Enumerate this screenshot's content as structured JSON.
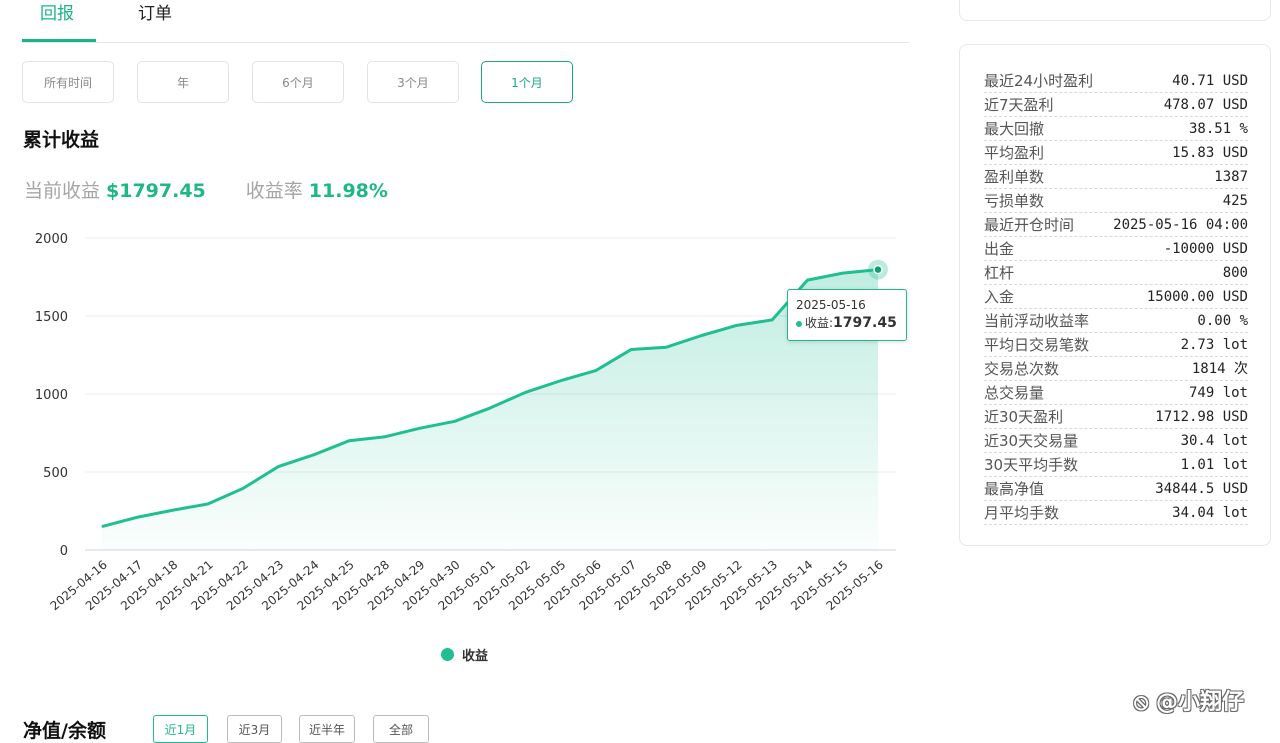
{
  "tabs": [
    {
      "label": "回报"
    },
    {
      "label": "订单"
    }
  ],
  "filters": [
    {
      "label": "所有时间"
    },
    {
      "label": "年"
    },
    {
      "label": "6个月"
    },
    {
      "label": "3个月"
    },
    {
      "label": "1个月"
    }
  ],
  "active_filter": "1个月",
  "section_title": "累计收益",
  "summary": {
    "current_label": "当前收益",
    "current_value": "$1797.45",
    "rate_label": "收益率",
    "rate_value": "11.98%"
  },
  "accent_color": "#1fb785",
  "chart_data": {
    "type": "area",
    "title": "",
    "xlabel": "",
    "ylabel": "",
    "ylim": [
      0,
      2000
    ],
    "yticks": [
      0,
      500,
      1000,
      1500,
      2000
    ],
    "grid": true,
    "legend_position": "bottom",
    "x": [
      "2025-04-16",
      "2025-04-17",
      "2025-04-18",
      "2025-04-21",
      "2025-04-22",
      "2025-04-23",
      "2025-04-24",
      "2025-04-25",
      "2025-04-28",
      "2025-04-29",
      "2025-04-30",
      "2025-05-01",
      "2025-05-02",
      "2025-05-05",
      "2025-05-06",
      "2025-05-07",
      "2025-05-08",
      "2025-05-09",
      "2025-05-12",
      "2025-05-13",
      "2025-05-14",
      "2025-05-15",
      "2025-05-16"
    ],
    "series": [
      {
        "name": "收益",
        "color": "#1fbf92",
        "values": [
          150,
          210,
          255,
          295,
          395,
          535,
          610,
          700,
          725,
          780,
          825,
          910,
          1010,
          1085,
          1150,
          1285,
          1300,
          1375,
          1440,
          1475,
          1730,
          1775,
          1797.45
        ]
      }
    ],
    "tooltip": {
      "date": "2025-05-16",
      "label": "收益:",
      "value": "1797.45"
    }
  },
  "legend_label": "收益",
  "nav_section": {
    "title": "净值/余额",
    "ranges": [
      "近1月",
      "近3月",
      "近半年",
      "全部"
    ],
    "active_range": "近1月"
  },
  "watermark": "@小翔仔",
  "stats": [
    {
      "label": "最近24小时盈利",
      "value": "40.71 USD"
    },
    {
      "label": "近7天盈利",
      "value": "478.07 USD"
    },
    {
      "label": "最大回撤",
      "value": "38.51 %"
    },
    {
      "label": "平均盈利",
      "value": "15.83 USD"
    },
    {
      "label": "盈利单数",
      "value": "1387"
    },
    {
      "label": "亏损单数",
      "value": "425"
    },
    {
      "label": "最近开仓时间",
      "value": "2025-05-16 04:00"
    },
    {
      "label": "出金",
      "value": "-10000 USD"
    },
    {
      "label": "杠杆",
      "value": "800"
    },
    {
      "label": "入金",
      "value": "15000.00 USD"
    },
    {
      "label": "当前浮动收益率",
      "value": "0.00 %"
    },
    {
      "label": "平均日交易笔数",
      "value": "2.73 lot"
    },
    {
      "label": "交易总次数",
      "value": "1814 次"
    },
    {
      "label": "总交易量",
      "value": "749 lot"
    },
    {
      "label": "近30天盈利",
      "value": "1712.98 USD"
    },
    {
      "label": "近30天交易量",
      "value": "30.4 lot"
    },
    {
      "label": "30天平均手数",
      "value": "1.01 lot"
    },
    {
      "label": "最高净值",
      "value": "34844.5 USD"
    },
    {
      "label": "月平均手数",
      "value": "34.04 lot"
    }
  ]
}
